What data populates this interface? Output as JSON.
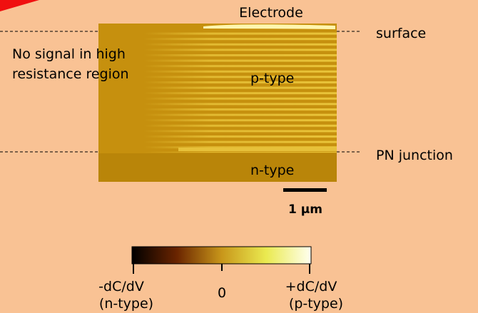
{
  "labels": {
    "electrode": "Electrode",
    "surface": "surface",
    "pn_junction": "PN junction",
    "no_signal": [
      "No signal in high",
      "resistance region"
    ],
    "p_type": "p-type",
    "n_type": "n-type",
    "scale_bar": "1 µm"
  },
  "colorbar": {
    "min_label": [
      "-dC/dV",
      "(n-type)"
    ],
    "mid_label": "0",
    "max_label": [
      "+dC/dV",
      "(p-type)"
    ]
  }
}
